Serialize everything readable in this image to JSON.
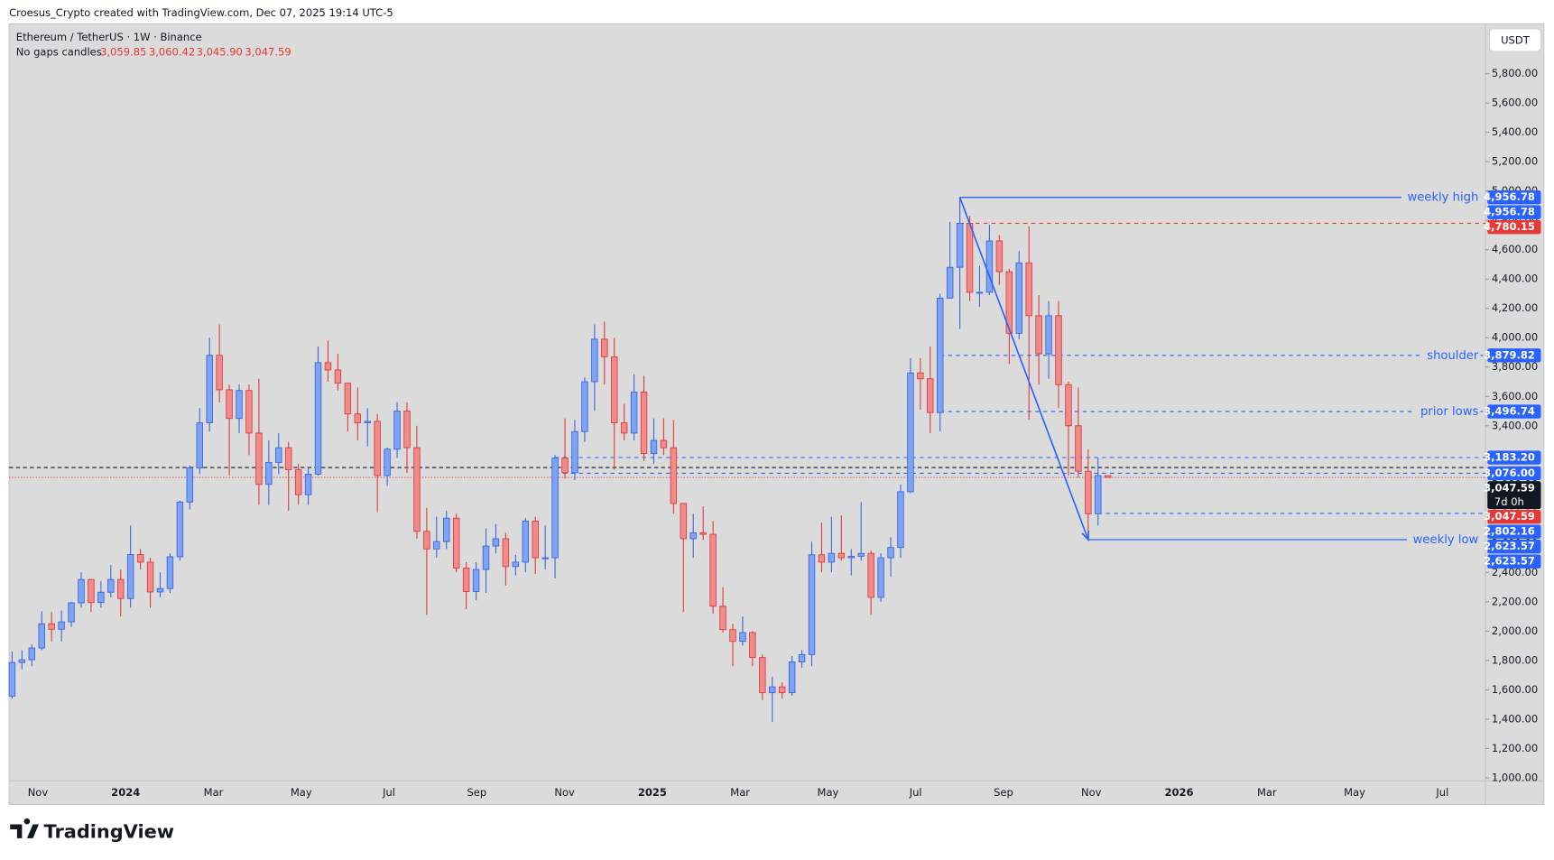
{
  "header": {
    "credit": "Croesus_Crypto created with TradingView.com, Dec 07, 2025 19:14 UTC-5",
    "brand": "TradingView"
  },
  "chart_data": {
    "type": "candlestick",
    "title": "Ethereum / TetherUS · 1W · Binance",
    "subtitle": "No gaps candles",
    "legend_values": [
      "3,059.85",
      "3,060.42",
      "3,045.90",
      "3,047.59"
    ],
    "currency": "USDT",
    "up_color": "#7fa3f3",
    "up_border": "#3a66e0",
    "down_color": "#ef8b8b",
    "down_border": "#e03b3b",
    "open": [
      1557,
      1786,
      1805,
      1885,
      2050,
      2013,
      2063,
      2193,
      2352,
      2195,
      2265,
      2352,
      2222,
      2522,
      2470,
      2267,
      2290,
      2507,
      2880,
      3112,
      3420,
      3880,
      3645,
      3450,
      3640,
      3350,
      3000,
      3150,
      3250,
      3100,
      2930,
      3070,
      3830,
      3780,
      3690,
      3480,
      3420,
      3430,
      3060,
      3240,
      3500,
      3250,
      2680,
      2560,
      2610,
      2770,
      2430,
      2270,
      2420,
      2580,
      2630,
      2440,
      2470,
      2750,
      2500,
      2500,
      3180,
      3080,
      3360,
      3700,
      3990,
      3870,
      3420,
      3350,
      3630,
      3210,
      3300,
      3250,
      2870,
      2630,
      2670,
      2660,
      2170,
      2010,
      1930,
      1990,
      1820,
      1580,
      1620,
      1580,
      1790,
      1840,
      2520,
      2470,
      2530,
      2500,
      2510,
      2530,
      2230,
      2500,
      2570,
      2950,
      3760,
      3720,
      3490,
      4270,
      4480,
      4780,
      4310,
      4310,
      4660,
      4450,
      4030,
      4510,
      4150,
      3890,
      4150,
      3680,
      3400,
      3090,
      2800,
      3059.85
    ],
    "high": [
      1860,
      1870,
      1910,
      2135,
      2130,
      2140,
      2200,
      2400,
      2350,
      2340,
      2450,
      2420,
      2720,
      2560,
      2500,
      2400,
      2530,
      2890,
      3130,
      3520,
      4000,
      4090,
      3680,
      3680,
      3680,
      3720,
      3300,
      3350,
      3290,
      3140,
      3120,
      3940,
      3980,
      3890,
      3690,
      3660,
      3520,
      3480,
      3250,
      3560,
      3560,
      3400,
      2840,
      2780,
      2820,
      2800,
      2470,
      2470,
      2700,
      2730,
      2670,
      2520,
      2770,
      2780,
      2720,
      3200,
      3450,
      3440,
      3730,
      4090,
      4110,
      4000,
      3550,
      3750,
      3740,
      3450,
      3450,
      3440,
      2870,
      2800,
      2850,
      2750,
      2300,
      2050,
      2100,
      2000,
      1840,
      1690,
      1650,
      1830,
      1870,
      2610,
      2740,
      2780,
      2790,
      2560,
      2880,
      2550,
      2530,
      2640,
      3000,
      3860,
      3860,
      3940,
      4300,
      4790,
      4956.78,
      4830,
      4490,
      4770,
      4700,
      4470,
      4590,
      4760,
      4290,
      4250,
      4250,
      3700,
      3660,
      3240,
      3180,
      3060.42
    ],
    "low": [
      1540,
      1740,
      1760,
      1870,
      1930,
      1930,
      2030,
      2160,
      2130,
      2160,
      2230,
      2100,
      2160,
      2420,
      2160,
      2230,
      2260,
      2480,
      2830,
      3070,
      3360,
      3560,
      3060,
      3350,
      3200,
      2860,
      2860,
      3070,
      2820,
      2860,
      2860,
      3060,
      3700,
      3640,
      3360,
      3300,
      3260,
      2810,
      2990,
      3180,
      3080,
      2630,
      2110,
      2500,
      2560,
      2400,
      2150,
      2210,
      2260,
      2530,
      2310,
      2380,
      2400,
      2390,
      2420,
      2360,
      3040,
      3030,
      3290,
      3500,
      3680,
      3100,
      3300,
      3300,
      3160,
      3140,
      3200,
      2800,
      2130,
      2500,
      2620,
      2120,
      1990,
      1760,
      1900,
      1760,
      1530,
      1380,
      1540,
      1560,
      1750,
      1760,
      2400,
      2400,
      2480,
      2380,
      2480,
      2110,
      2200,
      2370,
      2500,
      2940,
      3510,
      3350,
      3360,
      4270,
      4060,
      4250,
      4210,
      4290,
      4360,
      3820,
      3990,
      3440,
      3680,
      3720,
      3520,
      3060,
      3050,
      2623.57,
      2720,
      3045.9
    ],
    "close": [
      1786,
      1805,
      1885,
      2050,
      2013,
      2063,
      2193,
      2352,
      2195,
      2265,
      2352,
      2222,
      2522,
      2470,
      2267,
      2290,
      2507,
      2880,
      3112,
      3420,
      3880,
      3645,
      3450,
      3640,
      3350,
      3000,
      3150,
      3250,
      3100,
      2930,
      3070,
      3830,
      3780,
      3690,
      3480,
      3420,
      3430,
      3060,
      3240,
      3500,
      3250,
      2680,
      2560,
      2610,
      2770,
      2430,
      2270,
      2420,
      2580,
      2630,
      2440,
      2470,
      2750,
      2500,
      2500,
      3180,
      3080,
      3360,
      3700,
      3990,
      3870,
      3420,
      3350,
      3630,
      3210,
      3300,
      3250,
      2870,
      2630,
      2670,
      2660,
      2170,
      2010,
      1930,
      1990,
      1820,
      1580,
      1620,
      1580,
      1790,
      1840,
      2520,
      2470,
      2530,
      2500,
      2510,
      2530,
      2230,
      2500,
      2570,
      2950,
      3760,
      3720,
      3490,
      4270,
      4480,
      4780,
      4310,
      4310,
      4660,
      4450,
      4030,
      4510,
      4150,
      3890,
      4150,
      3680,
      3400,
      3090,
      2800,
      3059.85,
      3047.59
    ],
    "ylim": [
      980,
      6140
    ],
    "yticks": [
      {
        "value": 1000,
        "label": "1,000.00"
      },
      {
        "value": 1200,
        "label": "1,200.00"
      },
      {
        "value": 1400,
        "label": "1,400.00"
      },
      {
        "value": 1600,
        "label": "1,600.00"
      },
      {
        "value": 1800,
        "label": "1,800.00"
      },
      {
        "value": 2000,
        "label": "2,000.00"
      },
      {
        "value": 2200,
        "label": "2,200.00"
      },
      {
        "value": 2400,
        "label": "2,400.00"
      },
      {
        "value": 2600,
        "label": "2,600.00"
      },
      {
        "value": 2800,
        "label": "2,800.00"
      },
      {
        "value": 3000,
        "label": "3,000.00"
      },
      {
        "value": 3200,
        "label": "3,200.00"
      },
      {
        "value": 3400,
        "label": "3,400.00"
      },
      {
        "value": 3600,
        "label": "3,600.00"
      },
      {
        "value": 3800,
        "label": "3,800.00"
      },
      {
        "value": 4000,
        "label": "4,000.00"
      },
      {
        "value": 4200,
        "label": "4,200.00"
      },
      {
        "value": 4400,
        "label": "4,400.00"
      },
      {
        "value": 4600,
        "label": "4,600.00"
      },
      {
        "value": 4800,
        "label": "4,800.00"
      },
      {
        "value": 5000,
        "label": "5,000.00"
      },
      {
        "value": 5200,
        "label": "5,200.00"
      },
      {
        "value": 5400,
        "label": "5,400.00"
      },
      {
        "value": 5600,
        "label": "5,600.00"
      },
      {
        "value": 5800,
        "label": "5,800.00"
      }
    ],
    "xticks": [
      "Nov",
      "2024",
      "Mar",
      "May",
      "Jul",
      "Sep",
      "Nov",
      "2025",
      "Mar",
      "May",
      "Jul",
      "Sep",
      "Nov",
      "2026",
      "Mar",
      "May",
      "Jul"
    ],
    "levels": [
      {
        "value": 4956.78,
        "label": "4,956.78",
        "annotation": "weekly high",
        "style": "solid",
        "color": "#2962ff"
      },
      {
        "value": 4780.15,
        "label": "4,780.15",
        "style": "dashed",
        "color": "#e53935"
      },
      {
        "value": 3879.82,
        "label": "3,879.82",
        "annotation": "shoulder",
        "style": "dashed",
        "color": "#2962ff"
      },
      {
        "value": 3496.74,
        "label": "3,496.74",
        "annotation": "prior lows",
        "style": "dashed",
        "color": "#2962ff"
      },
      {
        "value": 3183.2,
        "label": "3,183.20",
        "style": "dashed",
        "color": "#2962ff"
      },
      {
        "value": 3076.0,
        "label": "3,076.00",
        "style": "dashed",
        "color": "#2962ff"
      },
      {
        "value": 2802.16,
        "label": "2,802.16",
        "style": "dashed",
        "color": "#2962ff"
      },
      {
        "value": 2623.57,
        "label": "2,623.57",
        "annotation": "weekly low",
        "style": "solid",
        "color": "#2962ff"
      }
    ],
    "last_price": {
      "value": 3047.59,
      "label": "3,047.59",
      "countdown": "7d 0h"
    }
  }
}
